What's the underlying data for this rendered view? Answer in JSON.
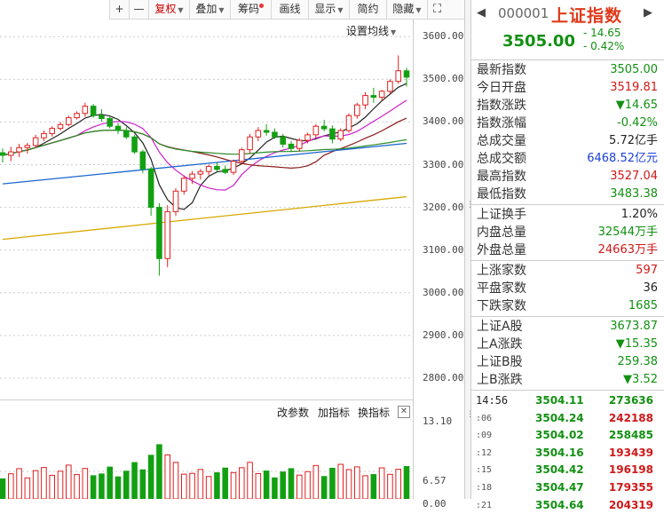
{
  "toolbar": {
    "plus": "+",
    "minus": "—",
    "fuquan": "复权",
    "diejia": "叠加",
    "chouma": "筹码",
    "huaxian": "画线",
    "xianshi": "显示",
    "jianyue": "简约",
    "yincang": "隐藏",
    "expand": "⛶"
  },
  "chart": {
    "ma_settings": "设置均线",
    "price_ticks": [
      "3600.00",
      "3500.00",
      "3400.00",
      "3300.00",
      "3200.00",
      "3100.00",
      "3000.00",
      "2900.00",
      "2800.00"
    ],
    "vol_ticks": [
      "13.10",
      "6.57",
      "0.00"
    ],
    "vol_header": {
      "change_params": "改参数",
      "add_indicator": "加指标",
      "switch_indicator": "换指标",
      "close": "✕"
    },
    "colors": {
      "up": "#e02020",
      "down": "#12a012",
      "ma5": "#222222",
      "ma10": "#cc20cc",
      "ma20": "#8b1a1a",
      "ma60": "#2a8a2a",
      "ma120": "#1a66d0",
      "ma250": "#d8a800"
    }
  },
  "chart_data": {
    "type": "candlestick",
    "series": [
      {
        "name": "daily",
        "values": [
          [
            3328,
            3338,
            3305,
            3322
          ],
          [
            3322,
            3342,
            3308,
            3330
          ],
          [
            3330,
            3349,
            3318,
            3340
          ],
          [
            3340,
            3351,
            3326,
            3345
          ],
          [
            3345,
            3370,
            3339,
            3363
          ],
          [
            3363,
            3380,
            3355,
            3373
          ],
          [
            3373,
            3390,
            3366,
            3385
          ],
          [
            3385,
            3400,
            3380,
            3394
          ],
          [
            3394,
            3415,
            3390,
            3410
          ],
          [
            3410,
            3425,
            3406,
            3420
          ],
          [
            3420,
            3445,
            3412,
            3437
          ],
          [
            3437,
            3442,
            3410,
            3415
          ],
          [
            3415,
            3430,
            3400,
            3408
          ],
          [
            3408,
            3412,
            3385,
            3390
          ],
          [
            3390,
            3398,
            3372,
            3380
          ],
          [
            3380,
            3388,
            3360,
            3365
          ],
          [
            3365,
            3370,
            3325,
            3330
          ],
          [
            3330,
            3335,
            3280,
            3290
          ],
          [
            3290,
            3295,
            3180,
            3200
          ],
          [
            3200,
            3210,
            3040,
            3080
          ],
          [
            3080,
            3205,
            3060,
            3190
          ],
          [
            3190,
            3245,
            3180,
            3238
          ],
          [
            3238,
            3275,
            3230,
            3268
          ],
          [
            3268,
            3285,
            3255,
            3278
          ],
          [
            3278,
            3290,
            3265,
            3284
          ],
          [
            3284,
            3300,
            3275,
            3296
          ],
          [
            3296,
            3305,
            3283,
            3289
          ],
          [
            3289,
            3298,
            3278,
            3282
          ],
          [
            3282,
            3312,
            3276,
            3308
          ],
          [
            3308,
            3340,
            3300,
            3335
          ],
          [
            3335,
            3372,
            3325,
            3365
          ],
          [
            3365,
            3388,
            3355,
            3380
          ],
          [
            3380,
            3395,
            3368,
            3376
          ],
          [
            3376,
            3385,
            3360,
            3365
          ],
          [
            3365,
            3372,
            3340,
            3348
          ],
          [
            3348,
            3355,
            3330,
            3338
          ],
          [
            3338,
            3362,
            3330,
            3357
          ],
          [
            3357,
            3375,
            3350,
            3370
          ],
          [
            3370,
            3395,
            3362,
            3390
          ],
          [
            3390,
            3405,
            3378,
            3384
          ],
          [
            3384,
            3392,
            3350,
            3360
          ],
          [
            3360,
            3385,
            3355,
            3380
          ],
          [
            3380,
            3420,
            3375,
            3415
          ],
          [
            3415,
            3445,
            3408,
            3440
          ],
          [
            3440,
            3470,
            3430,
            3462
          ],
          [
            3462,
            3480,
            3445,
            3458
          ],
          [
            3458,
            3475,
            3450,
            3472
          ],
          [
            3472,
            3500,
            3465,
            3495
          ],
          [
            3495,
            3556,
            3490,
            3520
          ],
          [
            3519.81,
            3527.04,
            3483.38,
            3505
          ]
        ]
      }
    ],
    "ylim": [
      2750,
      3640
    ]
  },
  "quote": {
    "code": "000001",
    "name": "上证指数",
    "price": "3505.00",
    "chg": "- 14.65",
    "pct": "- 0.42%",
    "sec1": [
      {
        "l": "最新指数",
        "v": "3505.00",
        "c": "g"
      },
      {
        "l": "今日开盘",
        "v": "3519.81",
        "c": "r"
      },
      {
        "l": "指数涨跌",
        "v": "▼14.65",
        "c": "g"
      },
      {
        "l": "指数涨幅",
        "v": "-0.42%",
        "c": "g"
      },
      {
        "l": "总成交量",
        "v": "5.72亿手",
        "c": "k"
      },
      {
        "l": "总成交额",
        "v": "6468.52亿元",
        "c": "b"
      },
      {
        "l": "最高指数",
        "v": "3527.04",
        "c": "r"
      },
      {
        "l": "最低指数",
        "v": "3483.38",
        "c": "g"
      }
    ],
    "sec2": [
      {
        "l": "上证换手",
        "v": "1.20%",
        "c": "k"
      },
      {
        "l": "内盘总量",
        "v": "32544万手",
        "c": "g"
      },
      {
        "l": "外盘总量",
        "v": "24663万手",
        "c": "r"
      }
    ],
    "sec3": [
      {
        "l": "上涨家数",
        "v": "597",
        "c": "r"
      },
      {
        "l": "平盘家数",
        "v": "36",
        "c": "k"
      },
      {
        "l": "下跌家数",
        "v": "1685",
        "c": "g"
      }
    ],
    "sec4": [
      {
        "l": "上证A股",
        "v": "3673.87",
        "c": "g"
      },
      {
        "l": "上A涨跌",
        "v": "▼15.35",
        "c": "g"
      },
      {
        "l": "上证B股",
        "v": "259.38",
        "c": "g"
      },
      {
        "l": "上B涨跌",
        "v": "▼3.52",
        "c": "g"
      }
    ],
    "ticks": [
      {
        "t": "14:56",
        "p": "3504.11",
        "v": "273636",
        "c": "g"
      },
      {
        "t": "   :06",
        "p": "3504.24",
        "v": "242188",
        "c": "r"
      },
      {
        "t": "   :09",
        "p": "3504.02",
        "v": "258485",
        "c": "g"
      },
      {
        "t": "   :12",
        "p": "3504.16",
        "v": "193439",
        "c": "r"
      },
      {
        "t": "   :15",
        "p": "3504.42",
        "v": "196198",
        "c": "r"
      },
      {
        "t": "   :18",
        "p": "3504.47",
        "v": "179355",
        "c": "r"
      },
      {
        "t": "   :21",
        "p": "3504.64",
        "v": "204319",
        "c": "r"
      }
    ]
  }
}
